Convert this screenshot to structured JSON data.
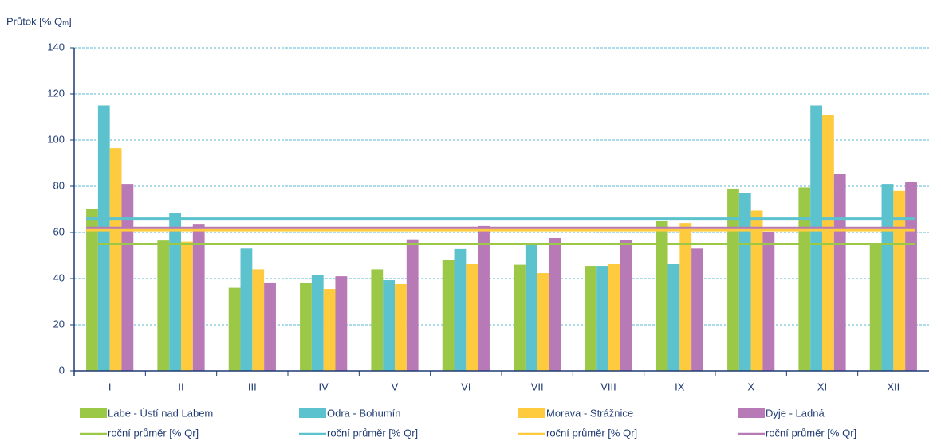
{
  "chart_data": {
    "type": "bar",
    "y_label": "Průtok [% Qₘ]",
    "categories": [
      "I",
      "II",
      "III",
      "IV",
      "V",
      "VI",
      "VII",
      "VIII",
      "IX",
      "X",
      "XI",
      "XII"
    ],
    "series": [
      {
        "name": "Labe - Ústí nad Labem",
        "color": "#9bc847",
        "values": [
          70,
          56.5,
          36,
          38,
          44,
          48,
          46,
          45.5,
          65,
          79,
          79.5,
          55
        ]
      },
      {
        "name": "Odra - Bohumín",
        "color": "#5bc2ce",
        "values": [
          115,
          68.6,
          53,
          41.7,
          39.3,
          52.8,
          54.8,
          45.5,
          46.2,
          77,
          115,
          81
        ]
      },
      {
        "name": "Morava - Strážnice",
        "color": "#fecb3f",
        "values": [
          96.5,
          56,
          44,
          35.5,
          37.6,
          46.2,
          42.4,
          46.2,
          64.1,
          69.5,
          111,
          78
        ]
      },
      {
        "name": "Dyje - Ladná",
        "color": "#b87ab6",
        "values": [
          81,
          63.4,
          38.3,
          41,
          57,
          62.8,
          57.6,
          56.6,
          53,
          60,
          85.5,
          82
        ]
      }
    ],
    "averages": [
      {
        "name": "roční průměr [% Qr]",
        "color": "#9bc847",
        "value": 55
      },
      {
        "name": "roční průměr [% Qr]",
        "color": "#5bc2ce",
        "value": 66
      },
      {
        "name": "roční průměr [% Qr]",
        "color": "#fecb3f",
        "value": 61
      },
      {
        "name": "roční průměr [% Qr]",
        "color": "#b87ab6",
        "value": 62
      }
    ],
    "ylim": [
      0,
      140
    ],
    "yticks": [
      0,
      20,
      40,
      60,
      80,
      100,
      120,
      140
    ],
    "grid": true
  }
}
